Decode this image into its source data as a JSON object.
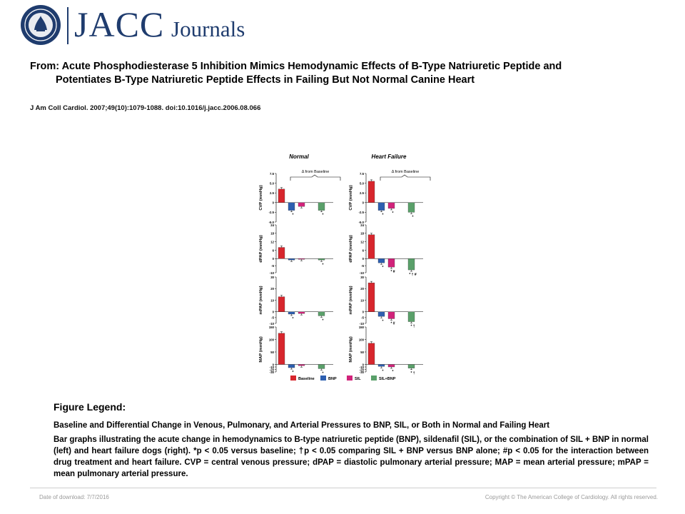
{
  "brand": {
    "name": "JACC",
    "subname": "Journals"
  },
  "article": {
    "title_line1": "From: Acute Phosphodiesterase 5 Inhibition Mimics Hemodynamic Effects of B-Type Natriuretic Peptide and",
    "title_line2": "Potentiates B-Type Natriuretic Peptide Effects in Failing But Not Normal Canine Heart",
    "citation": "J Am Coll Cardiol. 2007;49(10):1079-1088. doi:10.1016/j.jacc.2006.08.066"
  },
  "legend": {
    "heading": "Figure Legend:",
    "title": "Baseline and Differential  Change in Venous, Pulmonary, and Arterial Pressures to BNP, SIL, or Both in Normal and Failing Heart",
    "text": "Bar graphs illustrating the acute change in hemodynamics to B-type natriuretic peptide (BNP), sildenafil (SIL), or the combination of SIL + BNP in normal (left) and heart failure dogs (right). *p < 0.05 versus baseline; †p < 0.05 comparing SIL + BNP versus BNP alone; #p < 0.05 for the interaction between drug treatment and heart failure. CVP = central venous pressure; dPAP = diastolic pulmonary arterial pressure; MAP = mean arterial pressure; mPAP = mean pulmonary arterial pressure."
  },
  "footer": {
    "date": "Date of download:  7/7/2016",
    "copyright": "Copyright © The American College of Cardiology. All rights reserved."
  },
  "colors": {
    "brand": "#1f3c6e",
    "Baseline": "#d7262d",
    "BNP": "#2d5fb0",
    "SIL": "#d1237a",
    "SIL+BNP": "#5aa06a"
  },
  "chart_data": {
    "type": "bar",
    "panel_titles": [
      "Normal",
      "Heart Failure"
    ],
    "annotation": "Δ from Baseline",
    "categories": [
      "Baseline",
      "BNP",
      "SIL",
      "SIL+BNP"
    ],
    "legend_labels": [
      "Baseline",
      "BNP",
      "SIL",
      "SIL+BNP"
    ],
    "rows": [
      {
        "ylabel": "CVP (mmHg)",
        "ylim": [
          -5,
          7.5
        ],
        "ticks": [
          "7.5",
          "5.0",
          "2.5",
          "0",
          "-2.5",
          "-5.0"
        ],
        "tick_values": [
          7.5,
          5,
          2.5,
          0,
          -2.5,
          -5
        ],
        "normal": [
          3.5,
          -2.0,
          -1.0,
          -2.0
        ],
        "normal_marks": [
          "",
          "*",
          "",
          "*"
        ],
        "hf": [
          5.5,
          -2.0,
          -1.5,
          -2.5
        ],
        "hf_marks": [
          "",
          "*",
          "*",
          "*"
        ]
      },
      {
        "ylabel": "dPAP (mmHg)",
        "ylim": [
          -10,
          24
        ],
        "ticks": [
          "24",
          "18",
          "12",
          "6",
          "0",
          "-5",
          "-10"
        ],
        "tick_values": [
          24,
          18,
          12,
          6,
          0,
          -5,
          -10
        ],
        "normal": [
          8,
          -1,
          -0.5,
          -1
        ],
        "normal_marks": [
          "",
          "",
          "",
          "*"
        ],
        "hf": [
          17,
          -3,
          -6,
          -8
        ],
        "hf_marks": [
          "",
          "*",
          "* #",
          "* † #"
        ]
      },
      {
        "ylabel": "mPAP (mmHg)",
        "ylim": [
          -10,
          30
        ],
        "ticks": [
          "30",
          "20",
          "10",
          "0",
          "-5",
          "-10"
        ],
        "tick_values": [
          30,
          20,
          10,
          0,
          -5,
          -10
        ],
        "normal": [
          13,
          -2,
          -1.5,
          -3.5
        ],
        "normal_marks": [
          "",
          "*",
          "",
          "*"
        ],
        "hf": [
          25,
          -4,
          -6,
          -8.5
        ],
        "hf_marks": [
          "",
          "*",
          "* #",
          "* †"
        ]
      },
      {
        "ylabel": "MAP (mmHg)",
        "ylim": [
          -30,
          150
        ],
        "ticks": [
          "150",
          "100",
          "50",
          "0",
          "-10",
          "-20",
          "-30"
        ],
        "tick_values": [
          150,
          100,
          50,
          0,
          -10,
          -20,
          -30
        ],
        "normal": [
          125,
          -13,
          -5,
          -17
        ],
        "normal_marks": [
          "",
          "*",
          "",
          "*"
        ],
        "hf": [
          85,
          -8,
          -10,
          -15
        ],
        "hf_marks": [
          "",
          "*",
          "*",
          "* †"
        ]
      }
    ]
  }
}
